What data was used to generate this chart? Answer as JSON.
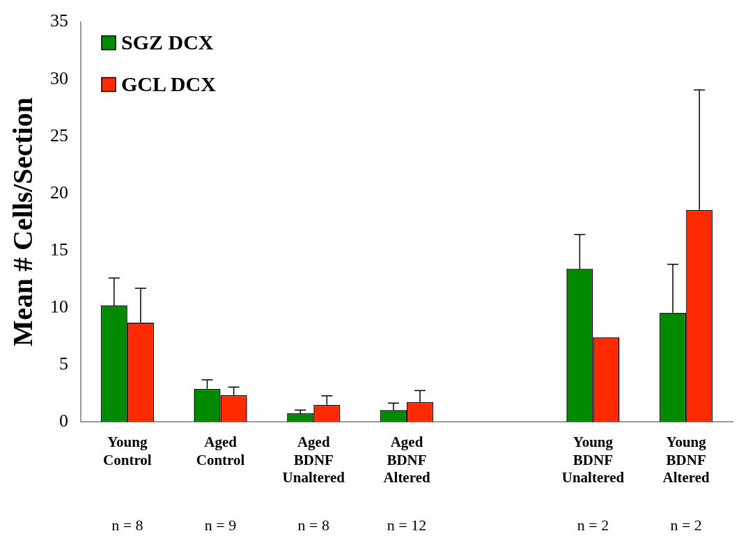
{
  "chart_data": {
    "type": "bar",
    "ylabel": "Mean # Cells/Section",
    "categories": [
      "Young Control",
      "Aged Control",
      "Aged BDNF Unaltered",
      "Aged BDNF Altered",
      null,
      "Young BDNF Unaltered",
      "Young BDNF Altered"
    ],
    "series": [
      {
        "name": "SGZ DCX",
        "color": "#008a00",
        "values": [
          10.2,
          2.9,
          0.75,
          1.05,
          null,
          13.4,
          9.55
        ],
        "errors": [
          [
            10.2,
            12.6
          ],
          [
            2.9,
            3.7
          ],
          [
            0.75,
            1.05
          ],
          [
            1.05,
            1.65
          ],
          null,
          [
            13.4,
            16.4
          ],
          [
            9.55,
            13.8
          ]
        ]
      },
      {
        "name": "GCL DCX",
        "color": "#ff2a00",
        "values": [
          8.7,
          2.35,
          1.5,
          1.75,
          null,
          7.4,
          18.55
        ],
        "errors": [
          [
            8.7,
            11.7
          ],
          [
            2.35,
            3.05
          ],
          [
            1.5,
            2.3
          ],
          [
            1.75,
            2.75
          ],
          null,
          null,
          [
            18.55,
            29.05
          ]
        ]
      }
    ],
    "ylim": [
      0,
      35
    ],
    "yticks": [
      0,
      5,
      10,
      15,
      20,
      25,
      30,
      35
    ],
    "grid": false,
    "legend": "top left",
    "annotations": [
      "n = 8",
      "n = 9",
      "n = 8",
      "n = 12",
      "n = 2",
      "n = 2"
    ]
  }
}
